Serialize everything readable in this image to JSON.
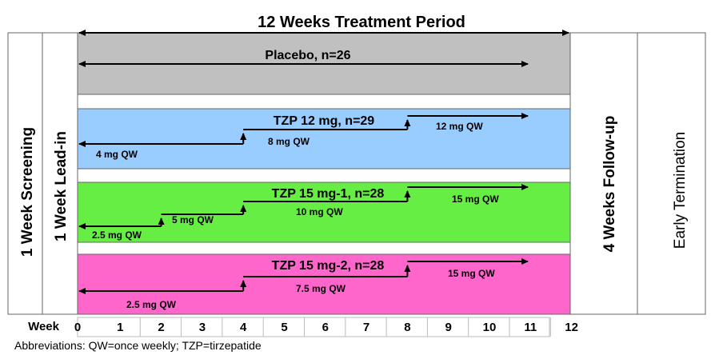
{
  "title": "12 Weeks Treatment Period",
  "screening_label": "1 Week Screening",
  "leadin_label": "1 Week  Lead-in",
  "followup_label": "4 Weeks Follow-up",
  "termination_label": "Early Termination",
  "week_axis": {
    "label": "Week",
    "ticks": [
      "0",
      "1",
      "2",
      "3",
      "4",
      "5",
      "6",
      "7",
      "8",
      "9",
      "10",
      "11",
      "12"
    ]
  },
  "arms": [
    {
      "name": "Placebo, n=26",
      "color": "#c0c0c0",
      "steps": []
    },
    {
      "name": "TZP 12 mg, n=29",
      "color": "#99ccff",
      "steps": [
        {
          "from": 0,
          "to": 4,
          "dose": "4 mg QW"
        },
        {
          "from": 4,
          "to": 8,
          "dose": "8 mg QW"
        },
        {
          "from": 8,
          "to": 11,
          "dose": "12 mg QW"
        }
      ]
    },
    {
      "name": "TZP 15 mg-1, n=28",
      "color": "#66ee44",
      "steps": [
        {
          "from": 0,
          "to": 2,
          "dose": "2.5 mg QW"
        },
        {
          "from": 2,
          "to": 4,
          "dose": "5 mg QW"
        },
        {
          "from": 4,
          "to": 8,
          "dose": "10 mg QW"
        },
        {
          "from": 8,
          "to": 11,
          "dose": "15 mg QW"
        }
      ]
    },
    {
      "name": "TZP 15 mg-2, n=28",
      "color": "#ff66cc",
      "steps": [
        {
          "from": 0,
          "to": 4,
          "dose": "2.5 mg QW"
        },
        {
          "from": 4,
          "to": 8,
          "dose": "7.5 mg QW"
        },
        {
          "from": 8,
          "to": 11,
          "dose": "15 mg  QW"
        }
      ]
    }
  ],
  "footnote": "Abbreviations: QW=once weekly; TZP=tirzepatide"
}
